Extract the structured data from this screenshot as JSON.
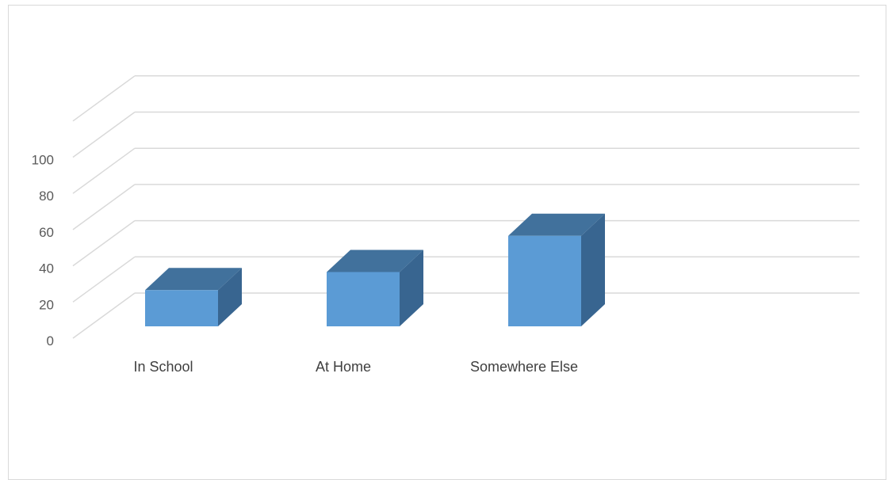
{
  "chart_data": {
    "type": "bar",
    "style": "3d-column",
    "categories": [
      "In School",
      "At Home",
      "Somewhere Else"
    ],
    "values": [
      20,
      30,
      50
    ],
    "ylim": [
      0,
      100
    ],
    "yticks": [
      "0",
      "20",
      "40",
      "60",
      "80",
      "100"
    ],
    "grid": true,
    "legend": "none",
    "colors": {
      "bar_front": "#5b9bd5",
      "bar_top": "#41719c",
      "bar_side": "#386590",
      "gridline": "#d9d9d9"
    }
  }
}
